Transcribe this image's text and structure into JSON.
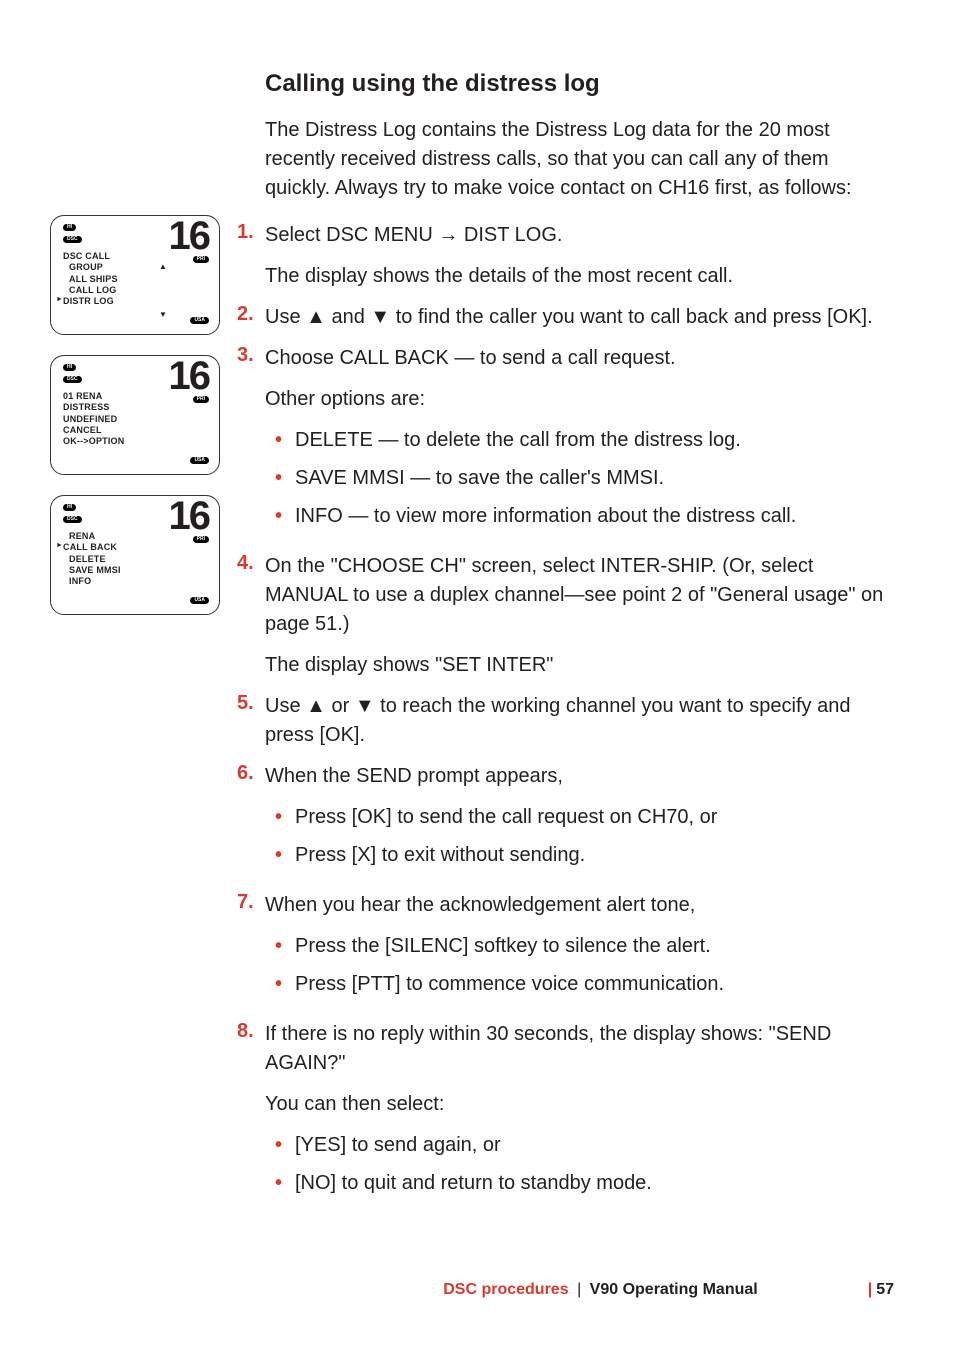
{
  "colors": {
    "accent": "#d63a2e",
    "text": "#231f20",
    "background": "#ffffff",
    "border": "#333333"
  },
  "heading": "Calling using the distress log",
  "lead": "The Distress Log contains the Distress Log data for the 20 most recently received distress calls, so that you can call any of them quickly. Always try to make voice contact on CH16 first, as follows:",
  "steps": {
    "s1": {
      "num": "1.",
      "text": "Select DSC MENU → DIST LOG.",
      "after": "The display shows the details of the most recent call."
    },
    "s2": {
      "num": "2.",
      "text": "Use ▲ and ▼ to find the caller you want to call back and press [OK]."
    },
    "s3": {
      "num": "3.",
      "text": "Choose CALL BACK — to send a call request.",
      "after": "Other options are:",
      "bullets": [
        "DELETE — to delete the call from the distress log.",
        "SAVE MMSI — to save the caller's MMSI.",
        "INFO — to view more information about the distress call."
      ]
    },
    "s4": {
      "num": "4.",
      "text": "On the \"CHOOSE CH\" screen, select INTER-SHIP.  (Or, select MANUAL to use a duplex channel—see point 2 of \"General usage\" on page 51.)",
      "after": "The display shows \"SET INTER\""
    },
    "s5": {
      "num": "5.",
      "text": "Use ▲ or ▼ to reach the working channel you want to specify and press [OK]."
    },
    "s6": {
      "num": "6.",
      "text": "When the SEND prompt appears,",
      "bullets": [
        "Press [OK] to send the call request on CH70, or",
        "Press [X] to exit without sending."
      ]
    },
    "s7": {
      "num": "7.",
      "text": "When you hear the acknowledgement alert tone,",
      "bullets": [
        "Press the [SILENC] softkey to silence the alert.",
        "Press [PTT] to commence voice communication."
      ]
    },
    "s8": {
      "num": "8.",
      "text": "If there is no reply within 30 seconds, the display shows: \"SEND AGAIN?\"",
      "after": "You can then select:",
      "bullets": [
        "[YES] to send again, or",
        "[NO] to quit and return to standby mode."
      ]
    }
  },
  "lcd": {
    "channel": "16",
    "tags": {
      "hi": "HI",
      "dsc": "DSC",
      "pri": "PRI",
      "usa": "USA"
    },
    "screen1": {
      "l1": "DSC CALL",
      "l2": "GROUP",
      "l3": "ALL SHIPS",
      "l4": "CALL LOG",
      "l5": "DISTR LOG"
    },
    "screen2": {
      "l1": "01 RENA",
      "l2": "DISTRESS",
      "l3": "UNDEFINED",
      "l4": "CANCEL",
      "l5": "OK-->OPTION"
    },
    "screen3": {
      "l1": "RENA",
      "l2": "CALL BACK",
      "l3": "DELETE",
      "l4": "SAVE MMSI",
      "l5": "INFO"
    }
  },
  "footer": {
    "breadcrumb": "DSC procedures",
    "title": "V90 Operating Manual",
    "page": "57"
  }
}
